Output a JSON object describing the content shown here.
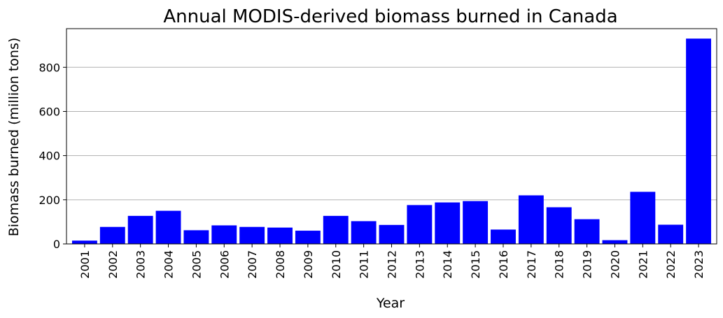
{
  "chart_data": {
    "type": "bar",
    "title": "Annual MODIS-derived biomass burned in Canada",
    "xlabel": "Year",
    "ylabel": "Biomass burned (million tons)",
    "categories": [
      "2001",
      "2002",
      "2003",
      "2004",
      "2005",
      "2006",
      "2007",
      "2008",
      "2009",
      "2010",
      "2011",
      "2012",
      "2013",
      "2014",
      "2015",
      "2016",
      "2017",
      "2018",
      "2019",
      "2020",
      "2021",
      "2022",
      "2023"
    ],
    "values": [
      15,
      77,
      127,
      150,
      62,
      84,
      77,
      74,
      60,
      127,
      103,
      86,
      176,
      188,
      194,
      65,
      220,
      166,
      112,
      17,
      236,
      87,
      930
    ],
    "ylim": [
      0,
      975
    ],
    "yticks": [
      0,
      200,
      400,
      600,
      800
    ],
    "bar_color": "#0000ff",
    "grid": "y",
    "legend": "none"
  }
}
